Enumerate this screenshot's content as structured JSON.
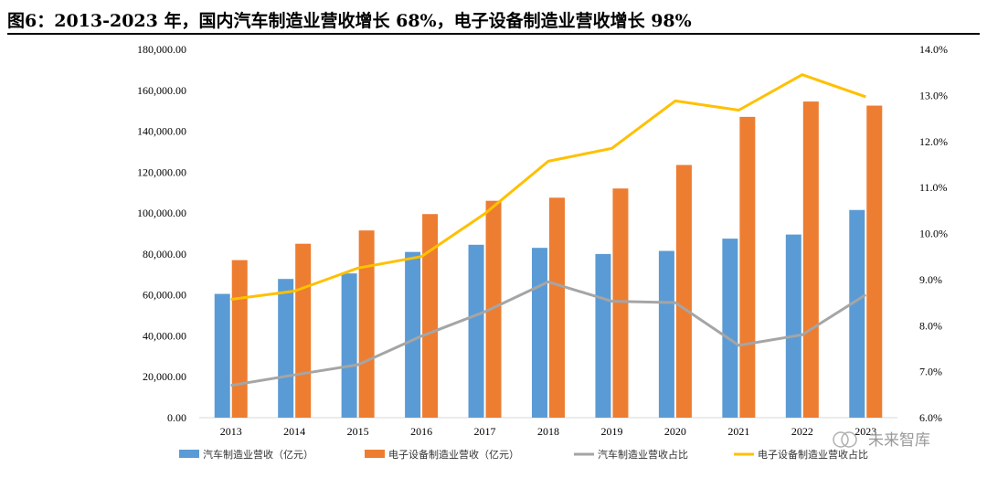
{
  "title": "图6：2013-2023 年，国内汽车制造业营收增长 68%，电子设备制造业营收增长 98%",
  "watermark": "未来智库",
  "colors": {
    "auto_bar": "#5b9bd5",
    "elec_bar": "#ed7d31",
    "auto_line": "#a5a5a5",
    "elec_line": "#ffc000"
  },
  "chart_data": {
    "type": "bar",
    "categories": [
      "2013",
      "2014",
      "2015",
      "2016",
      "2017",
      "2018",
      "2019",
      "2020",
      "2021",
      "2022",
      "2023"
    ],
    "series": [
      {
        "name": "汽车制造业营收（亿元）",
        "type": "bar",
        "axis": "left",
        "values": [
          60500,
          67800,
          70500,
          81000,
          84500,
          83000,
          80000,
          81500,
          87500,
          89500,
          101500
        ]
      },
      {
        "name": "电子设备制造业营收（亿元）",
        "type": "bar",
        "axis": "left",
        "values": [
          77000,
          85000,
          91500,
          99500,
          106000,
          107500,
          112000,
          123500,
          147000,
          154500,
          152500
        ]
      },
      {
        "name": "汽车制造业营收占比",
        "type": "line",
        "axis": "right",
        "values": [
          6.7,
          6.93,
          7.15,
          7.77,
          8.3,
          8.95,
          8.53,
          8.5,
          7.57,
          7.8,
          8.67
        ]
      },
      {
        "name": "电子设备制造业营收占比",
        "type": "line",
        "axis": "right",
        "values": [
          8.57,
          8.75,
          9.25,
          9.5,
          10.43,
          11.57,
          11.85,
          12.88,
          12.68,
          13.45,
          12.97
        ]
      }
    ],
    "y_left": {
      "ylim": [
        0,
        180000
      ],
      "ticks": [
        "0.00",
        "20,000.00",
        "40,000.00",
        "60,000.00",
        "80,000.00",
        "100,000.00",
        "120,000.00",
        "140,000.00",
        "160,000.00",
        "180,000.00"
      ]
    },
    "y_right": {
      "ylim": [
        6,
        14
      ],
      "ticks": [
        "6.0%",
        "7.0%",
        "8.0%",
        "9.0%",
        "10.0%",
        "11.0%",
        "12.0%",
        "13.0%",
        "14.0%"
      ]
    },
    "legend_position": "bottom"
  }
}
